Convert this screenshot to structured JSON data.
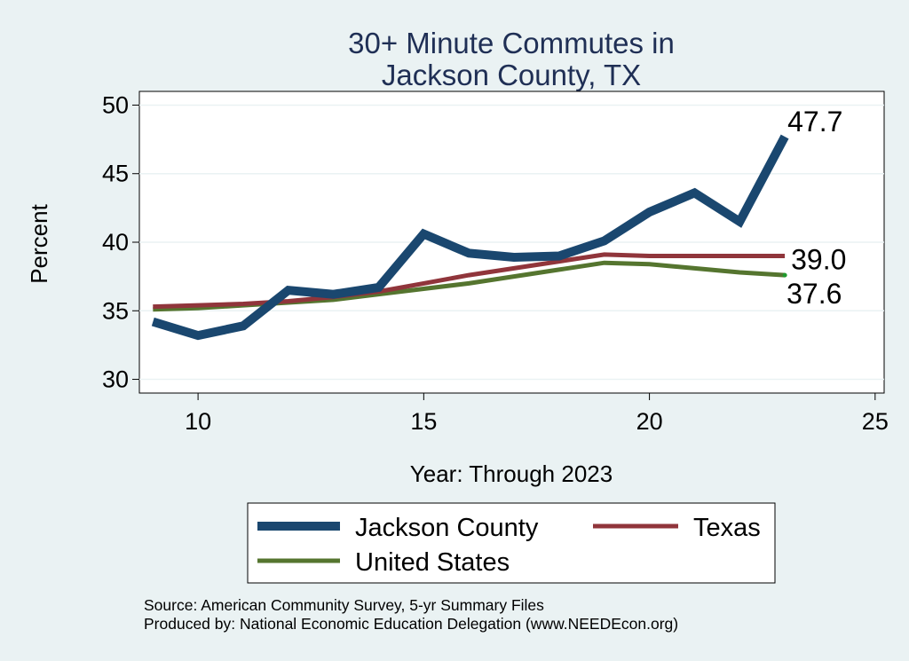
{
  "chart_data": {
    "type": "line",
    "title": [
      "30+ Minute Commutes in",
      "Jackson County, TX"
    ],
    "xlabel": "Year: Through 2023",
    "ylabel": "Percent",
    "xlim": [
      8.7,
      25.2
    ],
    "ylim": [
      29.0,
      51.0
    ],
    "xticks": [
      10,
      15,
      20,
      25
    ],
    "yticks": [
      30,
      35,
      40,
      45,
      50
    ],
    "grid": true,
    "series": [
      {
        "name": "Jackson County",
        "color": "#1a476f",
        "x": [
          9,
          10,
          11,
          12,
          13,
          14,
          15,
          16,
          17,
          18,
          19,
          20,
          21,
          22,
          23
        ],
        "values": [
          34.2,
          33.2,
          33.9,
          36.5,
          36.2,
          36.7,
          40.6,
          39.2,
          38.9,
          39.0,
          40.1,
          42.2,
          43.6,
          41.5,
          47.7
        ],
        "end_label": "47.7"
      },
      {
        "name": "Texas",
        "color": "#90353b",
        "x": [
          9,
          10,
          11,
          12,
          13,
          14,
          15,
          16,
          17,
          18,
          19,
          20,
          21,
          22,
          23
        ],
        "values": [
          35.3,
          35.4,
          35.5,
          35.7,
          36.0,
          36.4,
          37.0,
          37.6,
          38.1,
          38.6,
          39.1,
          39.0,
          39.0,
          39.0,
          39.0
        ],
        "end_label": "39.0"
      },
      {
        "name": "United States",
        "color": "#55752f",
        "x": [
          9,
          10,
          11,
          12,
          13,
          14,
          15,
          16,
          17,
          18,
          19,
          20,
          21,
          22,
          23
        ],
        "values": [
          35.1,
          35.2,
          35.4,
          35.6,
          35.8,
          36.2,
          36.6,
          37.0,
          37.5,
          38.0,
          38.5,
          38.4,
          38.1,
          37.8,
          37.6
        ],
        "end_label": "37.6"
      }
    ],
    "legend": {
      "position": "bottom",
      "entries": [
        "Jackson County",
        "Texas",
        "United States"
      ]
    },
    "notes": [
      "Source: American Community Survey, 5-yr Summary Files",
      "Produced by: National Economic Education Delegation (www.NEEDEcon.org)"
    ]
  },
  "colors": {
    "background": "#eaf2f3",
    "plot_background": "#ffffff",
    "grid": "#eaf2f3",
    "title": "#1f2f55"
  }
}
